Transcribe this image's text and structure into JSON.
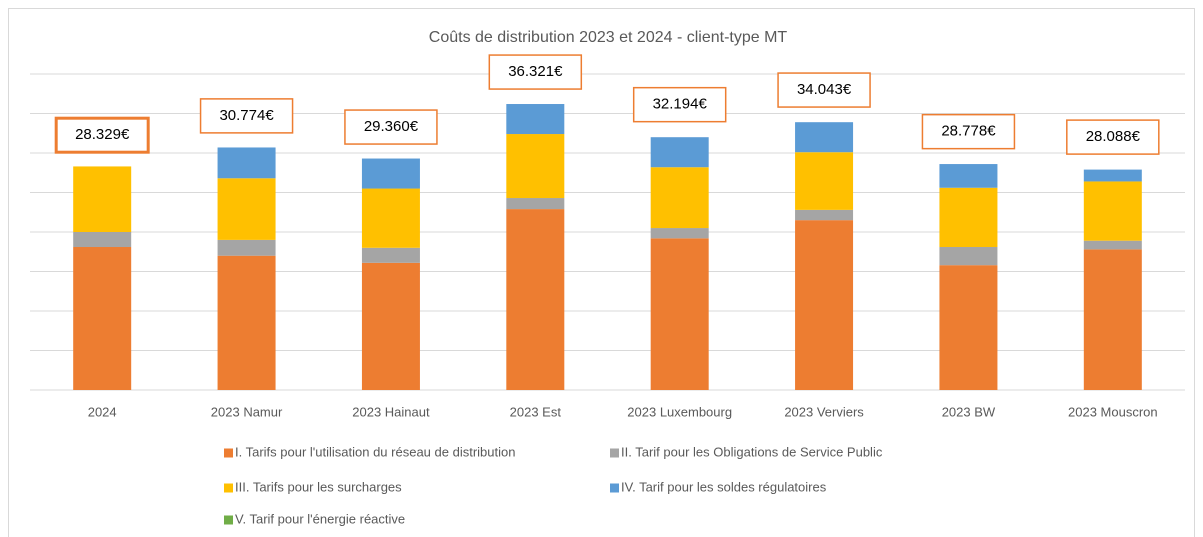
{
  "chart_data": {
    "type": "stacked_bar",
    "title": "Coûts de distribution 2023 et 2024 - client-type MT",
    "categories": [
      "2024",
      "2023 Namur",
      "2023 Hainaut",
      "2023 Est",
      "2023 Luxembourg",
      "2023 Verviers",
      "2023 BW",
      "2023 Mouscron"
    ],
    "series": [
      {
        "name": "I. Tarifs pour l'utilisation du réseau de distribution",
        "color": "#ed7d31",
        "values": [
          18.1,
          17.0,
          16.1,
          22.9,
          19.2,
          21.5,
          15.8,
          17.8
        ]
      },
      {
        "name": "II. Tarif pour les Obligations de Service Public",
        "color": "#a5a5a5",
        "values": [
          1.9,
          2.0,
          1.9,
          1.4,
          1.3,
          1.3,
          2.3,
          1.1
        ]
      },
      {
        "name": "III. Tarifs pour les surcharges",
        "color": "#ffc000",
        "values": [
          8.3,
          7.8,
          7.5,
          8.1,
          7.7,
          7.3,
          7.5,
          7.5
        ]
      },
      {
        "name": "IV. Tarif pour les soldes régulatoires",
        "color": "#5b9bd5",
        "values": [
          0,
          3.9,
          3.8,
          3.8,
          3.8,
          3.8,
          3.0,
          1.5
        ]
      },
      {
        "name": "V. Tarif pour l'énergie réactive",
        "color": "#70ad47",
        "values": [
          0,
          0,
          0,
          0,
          0,
          0,
          0,
          0
        ]
      }
    ],
    "totals": [
      28.329,
      30.774,
      29.36,
      36.321,
      32.194,
      34.043,
      28.778,
      28.088
    ],
    "total_labels": [
      "28.329€",
      "30.774€",
      "29.360€",
      "36.321€",
      "32.194€",
      "34.043€",
      "28.778€",
      "28.088€"
    ],
    "ylim": [
      0,
      40
    ],
    "yticks": [
      0,
      5,
      10,
      15,
      20,
      25,
      30,
      35,
      40
    ],
    "grid": true,
    "legend": "bottom"
  }
}
